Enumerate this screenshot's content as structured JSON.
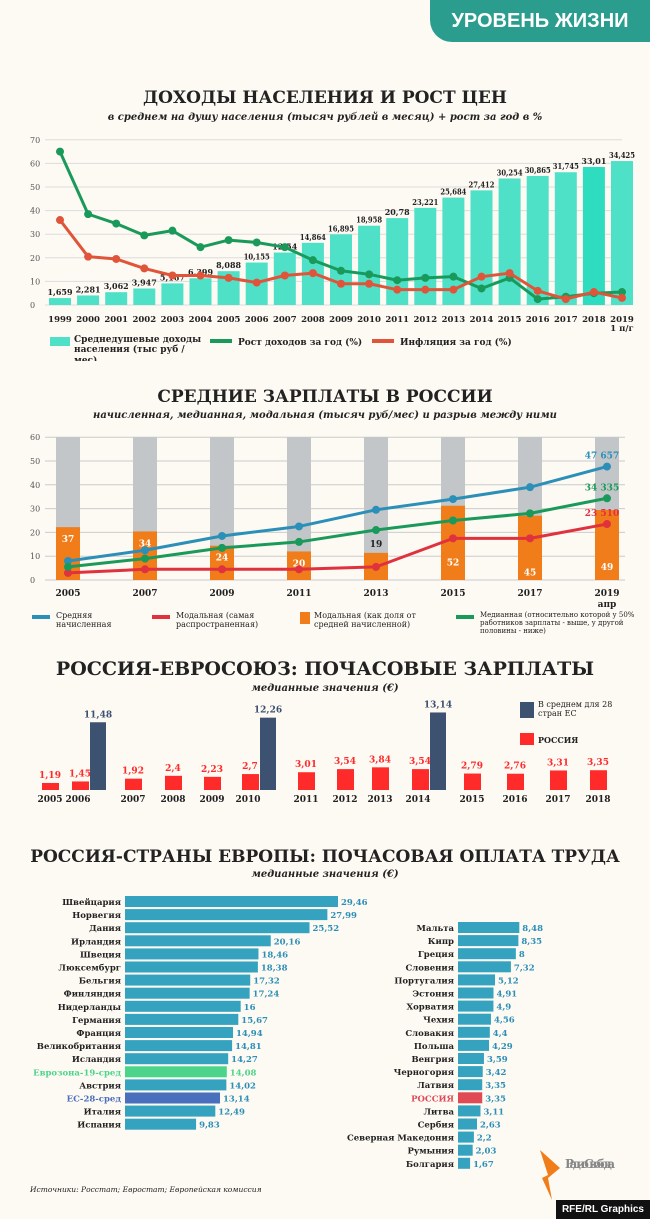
{
  "header": {
    "section": "УРОВЕНЬ ЖИЗНИ"
  },
  "footer": {
    "sources": "Источники: Росстат; Евростат; Европейская комиссия",
    "logo": "Радио Свобода",
    "credit": "RFE/RL Graphics"
  },
  "colors": {
    "teal": "#4fe0c8",
    "green": "#1a9a5a",
    "orange_red": "#e0553a",
    "blue": "#2b8fb8",
    "red": "#e0313e",
    "orange": "#f07d1a",
    "grey": "#c2c6c9",
    "navy": "#3d5170",
    "bright_red": "#ff2a2a",
    "bar_blue": "#35a3bf",
    "eurozone": "#4cd58a",
    "eu28": "#4a6fbd",
    "russia": "#e04a55"
  },
  "chart_data": [
    {
      "type": "bar+line",
      "title": "ДОХОДЫ НАСЕЛЕНИЯ И РОСТ ЦЕН",
      "subtitle": "в среднем на душу населения (тысяч рублей в месяц) + рост за год в %",
      "ylim": [
        0,
        70
      ],
      "yticks": [
        "0",
        "10",
        "20",
        "30",
        "40",
        "50",
        "60",
        "70"
      ],
      "grid": true,
      "categories": [
        "1999",
        "2000",
        "2001",
        "2002",
        "2003",
        "2004",
        "2005",
        "2006",
        "2007",
        "2008",
        "2009",
        "2010",
        "2011",
        "2012",
        "2013",
        "2014",
        "2015",
        "2016",
        "2017",
        "2018",
        "2019"
      ],
      "last_category_sub": "1 п/г",
      "bars": {
        "name": "Среднедушевые доходы населения (тыс руб / мес)",
        "values": [
          1.659,
          2.281,
          3.062,
          3.947,
          5.167,
          6.399,
          8.088,
          10.155,
          12.54,
          14.864,
          16.895,
          18.958,
          20.78,
          23.221,
          25.684,
          27.412,
          30.254,
          30.865,
          31.745,
          33.01,
          34.425
        ],
        "labels": [
          "1,659",
          "2,281",
          "3,062",
          "3,947",
          "5,167",
          "6,399",
          "8,088",
          "10,155",
          "12,54",
          "14,864",
          "16,895",
          "18,958",
          "20,78",
          "23,221",
          "25,684",
          "27,412",
          "30,254",
          "30,865",
          "31,745",
          "33,01",
          "34,425"
        ]
      },
      "series": [
        {
          "name": "Рост доходов за год (%)",
          "values": [
            65,
            38.5,
            34.5,
            29.5,
            31.5,
            24.5,
            27.5,
            26.5,
            24.5,
            19,
            14.5,
            13,
            10.5,
            11.5,
            12,
            7,
            11.5,
            2.5,
            3.5,
            5,
            5.5
          ]
        },
        {
          "name": "Инфляция за год (%)",
          "values": [
            36,
            20.5,
            19.5,
            15.5,
            12.5,
            12.5,
            11.5,
            9.5,
            12.5,
            13.5,
            9,
            9,
            6.5,
            6.5,
            6.5,
            12,
            13.5,
            6,
            2.5,
            5.5,
            3
          ]
        }
      ]
    },
    {
      "type": "bar+line",
      "title": "СРЕДНИЕ ЗАРПЛАТЫ В РОССИИ",
      "subtitle": "начисленная, медианная, модальная (тысяч руб/мес) и разрыв между ними",
      "ylim": [
        0,
        60
      ],
      "yticks": [
        "0",
        "10",
        "20",
        "30",
        "40",
        "50",
        "60"
      ],
      "categories": [
        "2005",
        "2007",
        "2009",
        "2011",
        "2013",
        "2015",
        "2017",
        "2019"
      ],
      "last_category_sub": "апр",
      "bars": {
        "name": "Модальная (как доля от средней начисленной)",
        "values": [
          37,
          34,
          24,
          20,
          19,
          52,
          45,
          49
        ],
        "labels": [
          "37",
          "34",
          "24",
          "20",
          "19",
          "52",
          "45",
          "49"
        ]
      },
      "series": [
        {
          "name": "Средняя начисленная",
          "values": [
            8,
            12.5,
            18.5,
            22.5,
            29.5,
            34,
            39,
            47.657
          ],
          "end_label": "47 657"
        },
        {
          "name": "Модальная (самая распространенная)",
          "values": [
            3,
            4.5,
            4.5,
            4.5,
            5.5,
            17.5,
            17.5,
            23.51
          ],
          "end_label": "23 510"
        },
        {
          "name": "Медианная (относительно которой у 50% работников зарплаты - выше, у другой половины - ниже)",
          "values": [
            5.5,
            9,
            13.5,
            16,
            21,
            25,
            28,
            34.335
          ],
          "end_label": "34 335"
        }
      ]
    },
    {
      "type": "bar",
      "title": "РОССИЯ-ЕВРОСОЮЗ: ПОЧАСОВЫЕ ЗАРПЛАТЫ",
      "subtitle": "медианные значения (€)",
      "categories": [
        "2005",
        "2006",
        "2007",
        "2008",
        "2009",
        "2010",
        "2011",
        "2012",
        "2013",
        "2014",
        "2015",
        "2016",
        "2017",
        "2018"
      ],
      "series": [
        {
          "name": "РОССИЯ",
          "values": [
            1.19,
            1.45,
            1.92,
            2.4,
            2.23,
            2.7,
            3.01,
            3.54,
            3.84,
            3.54,
            2.79,
            2.76,
            3.31,
            3.35
          ],
          "labels": [
            "1,19",
            "1,45",
            "1,92",
            "2,4",
            "2,23",
            "2,7",
            "3,01",
            "3,54",
            "3,84",
            "3,54",
            "2,79",
            "2,76",
            "3,31",
            "3,35"
          ]
        },
        {
          "name": "В среднем для 28 стран ЕС",
          "values": [
            null,
            11.48,
            null,
            null,
            null,
            12.26,
            null,
            null,
            null,
            13.14,
            null,
            null,
            null,
            null
          ],
          "labels": [
            null,
            "11,48",
            null,
            null,
            null,
            "12,26",
            null,
            null,
            null,
            "13,14",
            null,
            null,
            null,
            null
          ]
        }
      ]
    },
    {
      "type": "bar",
      "orientation": "horizontal",
      "title": "РОССИЯ-СТРАНЫ ЕВРОПЫ: ПОЧАСОВАЯ ОПЛАТА ТРУДА",
      "subtitle": "медианные значения (€)",
      "left": [
        [
          "Швейцария",
          29.46,
          "29,46"
        ],
        [
          "Норвегия",
          27.99,
          "27,99"
        ],
        [
          "Дания",
          25.52,
          "25,52"
        ],
        [
          "Ирландия",
          20.16,
          "20,16"
        ],
        [
          "Швеция",
          18.46,
          "18,46"
        ],
        [
          "Люксембург",
          18.38,
          "18,38"
        ],
        [
          "Бельгия",
          17.32,
          "17,32"
        ],
        [
          "Финляндия",
          17.24,
          "17,24"
        ],
        [
          "Нидерланды",
          16,
          "16"
        ],
        [
          "Германия",
          15.67,
          "15,67"
        ],
        [
          "Франция",
          14.94,
          "14,94"
        ],
        [
          "Великобритания",
          14.81,
          "14,81"
        ],
        [
          "Исландия",
          14.27,
          "14,27"
        ],
        [
          "Еврозона-19-сред",
          14.08,
          "14,08",
          "eurozone"
        ],
        [
          "Австрия",
          14.02,
          "14,02"
        ],
        [
          "ЕС-28-сред",
          13.14,
          "13,14",
          "eu28"
        ],
        [
          "Италия",
          12.49,
          "12,49"
        ],
        [
          "Испания",
          9.83,
          "9,83"
        ]
      ],
      "right": [
        [
          "Мальта",
          8.48,
          "8,48"
        ],
        [
          "Кипр",
          8.35,
          "8,35"
        ],
        [
          "Греция",
          8,
          "8"
        ],
        [
          "Словения",
          7.32,
          "7,32"
        ],
        [
          "Португалия",
          5.12,
          "5,12"
        ],
        [
          "Эстония",
          4.91,
          "4,91"
        ],
        [
          "Хорватия",
          4.9,
          "4,9"
        ],
        [
          "Чехия",
          4.56,
          "4,56"
        ],
        [
          "Словакия",
          4.4,
          "4,4"
        ],
        [
          "Польша",
          4.29,
          "4,29"
        ],
        [
          "Венгрия",
          3.59,
          "3,59"
        ],
        [
          "Черногория",
          3.42,
          "3,42"
        ],
        [
          "Латвия",
          3.35,
          "3,35"
        ],
        [
          "РОССИЯ",
          3.35,
          "3,35",
          "russia"
        ],
        [
          "Литва",
          3.11,
          "3,11"
        ],
        [
          "Сербия",
          2.63,
          "2,63"
        ],
        [
          "Северная Македония",
          2.2,
          "2,2"
        ],
        [
          "Румыния",
          2.03,
          "2,03"
        ],
        [
          "Болгария",
          1.67,
          "1,67"
        ]
      ]
    }
  ]
}
